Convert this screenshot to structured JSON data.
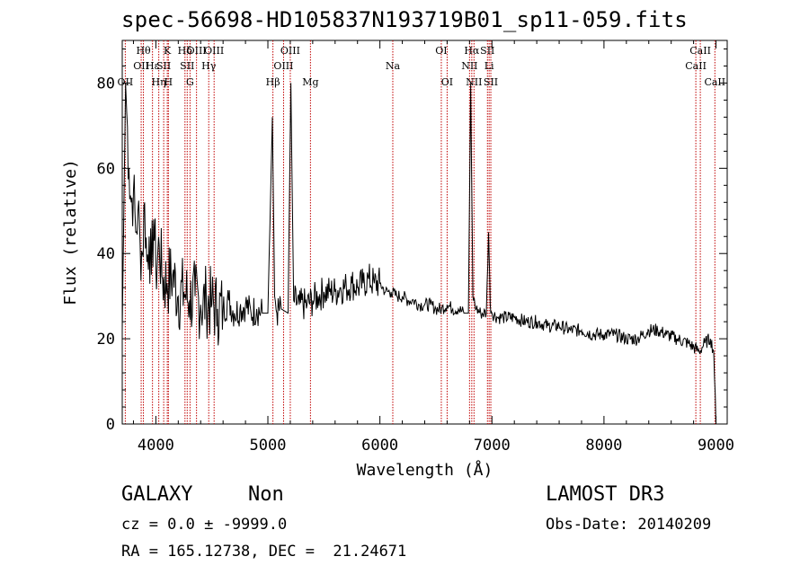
{
  "title": "spec-56698-HD105837N193719B01_sp11-059.fits",
  "chart_data": {
    "type": "line",
    "xlabel": "Wavelength (Å)",
    "ylabel": "Flux (relative)",
    "xlim": [
      3700,
      9100
    ],
    "ylim": [
      0,
      90
    ],
    "xticks": [
      4000,
      5000,
      6000,
      7000,
      8000,
      9000
    ],
    "yticks": [
      0,
      20,
      40,
      60,
      80
    ],
    "grid": false,
    "series": [
      {
        "x": [
          3700,
          3730,
          3740,
          3760,
          3780,
          3800,
          3820,
          3840,
          3860,
          3880,
          3900,
          3920,
          3940,
          3960,
          3980,
          4000,
          4030,
          4060,
          4100,
          4150,
          4200,
          4250,
          4300,
          4350,
          4400,
          4450,
          4500,
          4550,
          4600,
          4650,
          4700,
          4750,
          4800,
          4850,
          4900,
          4950,
          5000,
          5040,
          5060,
          5080,
          5120,
          5180,
          5205,
          5230,
          5280,
          5350,
          5400,
          5450,
          5500,
          5550,
          5600,
          5650,
          5700,
          5750,
          5800,
          5850,
          5900,
          5950,
          6000,
          6050,
          6100,
          6150,
          6200,
          6250,
          6300,
          6350,
          6400,
          6450,
          6500,
          6550,
          6600,
          6650,
          6700,
          6750,
          6790,
          6810,
          6830,
          6860,
          6900,
          6950,
          6970,
          6985,
          7000,
          7050,
          7100,
          7200,
          7300,
          7400,
          7500,
          7600,
          7700,
          7800,
          7900,
          8000,
          8100,
          8200,
          8300,
          8400,
          8480,
          8560,
          8650,
          8750,
          8850,
          8900,
          8950,
          8980,
          9000
        ],
        "y": [
          22,
          80,
          73,
          60,
          52,
          55,
          45,
          50,
          42,
          40,
          52,
          38,
          44,
          35,
          48,
          36,
          42,
          34,
          33,
          35,
          30,
          31,
          29,
          30,
          28,
          29,
          28,
          27,
          27,
          29,
          26,
          27,
          28,
          26,
          27,
          26,
          26,
          72,
          30,
          26,
          27,
          26,
          80,
          29,
          28,
          28,
          29,
          30,
          31,
          31,
          31,
          32,
          32,
          33,
          32,
          33,
          34,
          33,
          33,
          31,
          31,
          30,
          30,
          29,
          29,
          28,
          28,
          28,
          27,
          27,
          28,
          27,
          27,
          26,
          26,
          80,
          30,
          27,
          26,
          26,
          45,
          28,
          26,
          25,
          25,
          25,
          24,
          24,
          23,
          23,
          22,
          22,
          21,
          21,
          21,
          20,
          20,
          22,
          22,
          21,
          20,
          19,
          17,
          19,
          20,
          17,
          0
        ]
      }
    ],
    "lines": [
      {
        "x": 3727,
        "label": "OII",
        "row": 2
      },
      {
        "x": 3869,
        "label": "OII",
        "row": 1
      },
      {
        "x": 3889,
        "label": "Hθ",
        "row": 0
      },
      {
        "x": 3970,
        "label": "Hε",
        "row": 1
      },
      {
        "x": 4026,
        "label": "Hη",
        "row": 2
      },
      {
        "x": 4070,
        "label": "SII",
        "row": 1
      },
      {
        "x": 4102,
        "label": "K",
        "row": 0
      },
      {
        "x": 4112,
        "label": "H",
        "row": 2
      },
      {
        "x": 4260,
        "label": "Hδ",
        "row": 0
      },
      {
        "x": 4280,
        "label": "SII",
        "row": 1
      },
      {
        "x": 4305,
        "label": "G",
        "row": 2
      },
      {
        "x": 4363,
        "label": "OIII",
        "row": 0
      },
      {
        "x": 4472,
        "label": "Hγ",
        "row": 1
      },
      {
        "x": 4520,
        "label": "OIII",
        "row": 0
      },
      {
        "x": 5045,
        "label": "Hβ",
        "row": 2
      },
      {
        "x": 5140,
        "label": "OIII",
        "row": 1
      },
      {
        "x": 5200,
        "label": "OIII",
        "row": 0
      },
      {
        "x": 5380,
        "label": "Mg",
        "row": 2
      },
      {
        "x": 6115,
        "label": "Na",
        "row": 1
      },
      {
        "x": 6548,
        "label": "OI",
        "row": 0
      },
      {
        "x": 6600,
        "label": "OI",
        "row": 2
      },
      {
        "x": 6800,
        "label": "NII",
        "row": 1
      },
      {
        "x": 6820,
        "label": "Hα",
        "row": 0
      },
      {
        "x": 6840,
        "label": "NII",
        "row": 2
      },
      {
        "x": 6960,
        "label": "SII",
        "row": 0
      },
      {
        "x": 6975,
        "label": "Li",
        "row": 1
      },
      {
        "x": 6990,
        "label": "SII",
        "row": 2
      },
      {
        "x": 8820,
        "label": "CaII",
        "row": 1
      },
      {
        "x": 8860,
        "label": "CaII",
        "row": 0
      },
      {
        "x": 8990,
        "label": "CaII",
        "row": 2
      }
    ]
  },
  "info": {
    "class": "GALAXY",
    "subclass": "Non",
    "survey": "LAMOST DR3",
    "cz": "cz = 0.0 ± -9999.0",
    "obsdate": "Obs-Date: 20140209",
    "radec": "RA = 165.12738, DEC =  21.24671"
  }
}
